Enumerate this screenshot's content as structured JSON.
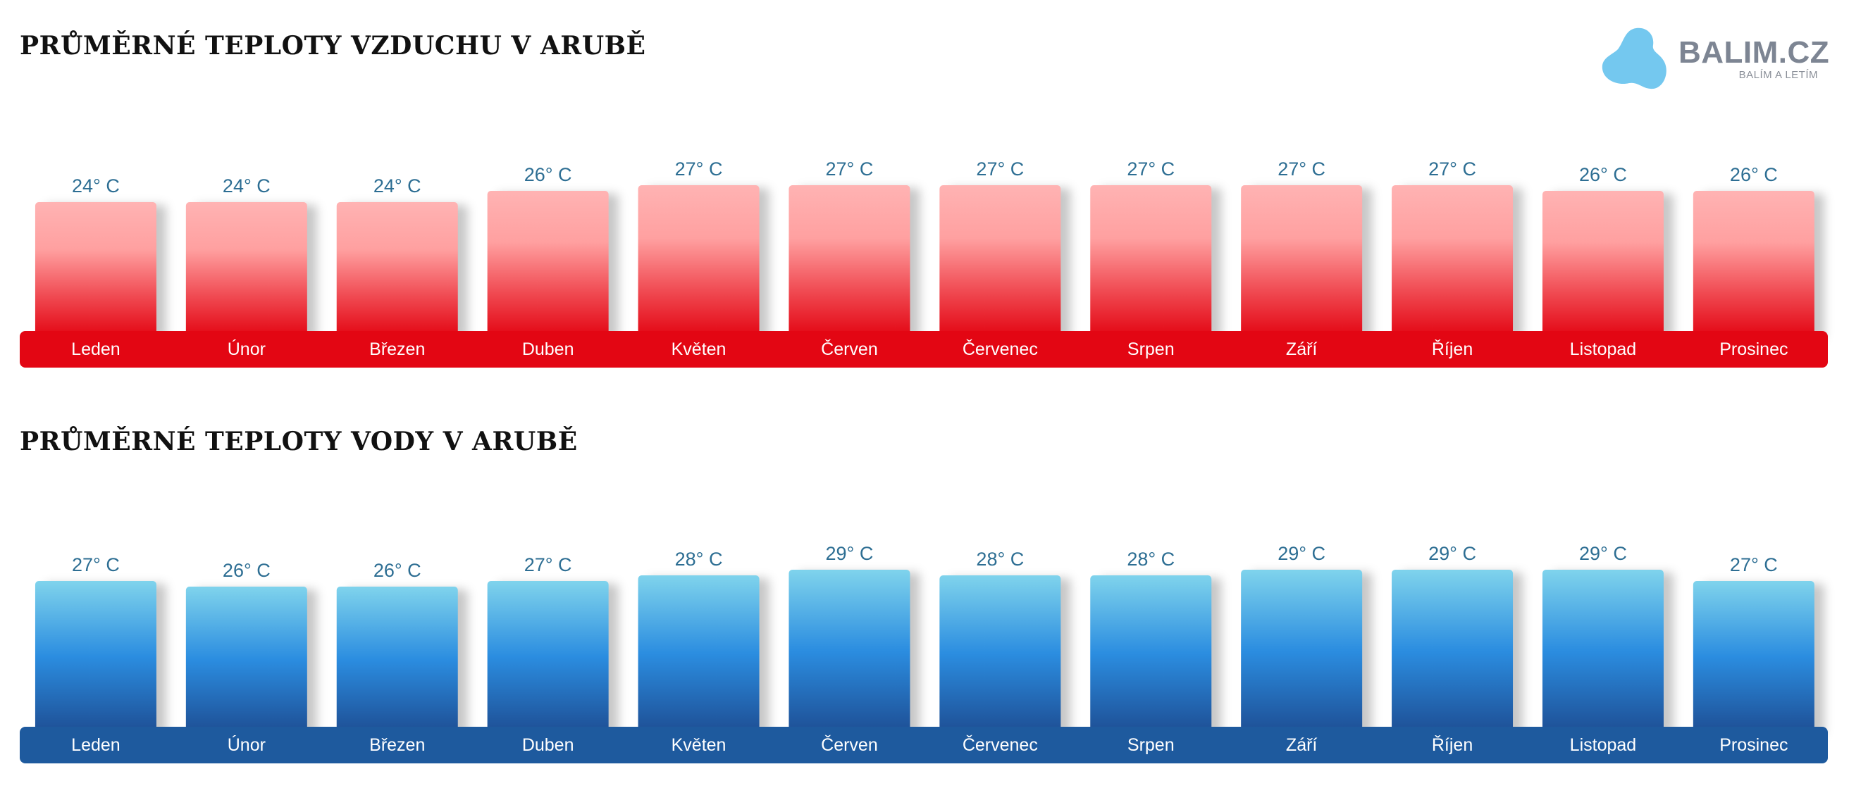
{
  "logo": {
    "name": "BALIM.CZ",
    "tagline": "BALÍM A LETÍM"
  },
  "chart_data": [
    {
      "type": "bar",
      "title": "PRŮMĚRNÉ TEPLOTY VZDUCHU V ARUBĚ",
      "categories": [
        "Leden",
        "Únor",
        "Březen",
        "Duben",
        "Květen",
        "Červen",
        "Červenec",
        "Srpen",
        "Září",
        "Říjen",
        "Listopad",
        "Prosinec"
      ],
      "values": [
        24,
        24,
        24,
        26,
        27,
        27,
        27,
        27,
        27,
        27,
        26,
        26
      ],
      "labels": [
        "24° C",
        "24° C",
        "24° C",
        "26° C",
        "27° C",
        "27° C",
        "27° C",
        "27° C",
        "27° C",
        "27° C",
        "26° C",
        "26° C"
      ],
      "colors": {
        "bar_top": "#ffb3b3",
        "bar_bottom": "#e30613",
        "base": "#e30613"
      }
    },
    {
      "type": "bar",
      "title": "PRŮMĚRNÉ TEPLOTY VODY V ARUBĚ",
      "categories": [
        "Leden",
        "Únor",
        "Březen",
        "Duben",
        "Květen",
        "Červen",
        "Červenec",
        "Srpen",
        "Září",
        "Říjen",
        "Listopad",
        "Prosinec"
      ],
      "values": [
        27,
        26,
        26,
        27,
        28,
        29,
        28,
        28,
        29,
        29,
        29,
        27
      ],
      "labels": [
        "27° C",
        "26° C",
        "26° C",
        "27° C",
        "28° C",
        "29° C",
        "28° C",
        "28° C",
        "29° C",
        "29° C",
        "29° C",
        "27° C"
      ],
      "colors": {
        "bar_top": "#7fd3ec",
        "bar_mid": "#2b8de0",
        "bar_bottom": "#1e4f95",
        "base": "#1e5a9e"
      }
    }
  ]
}
